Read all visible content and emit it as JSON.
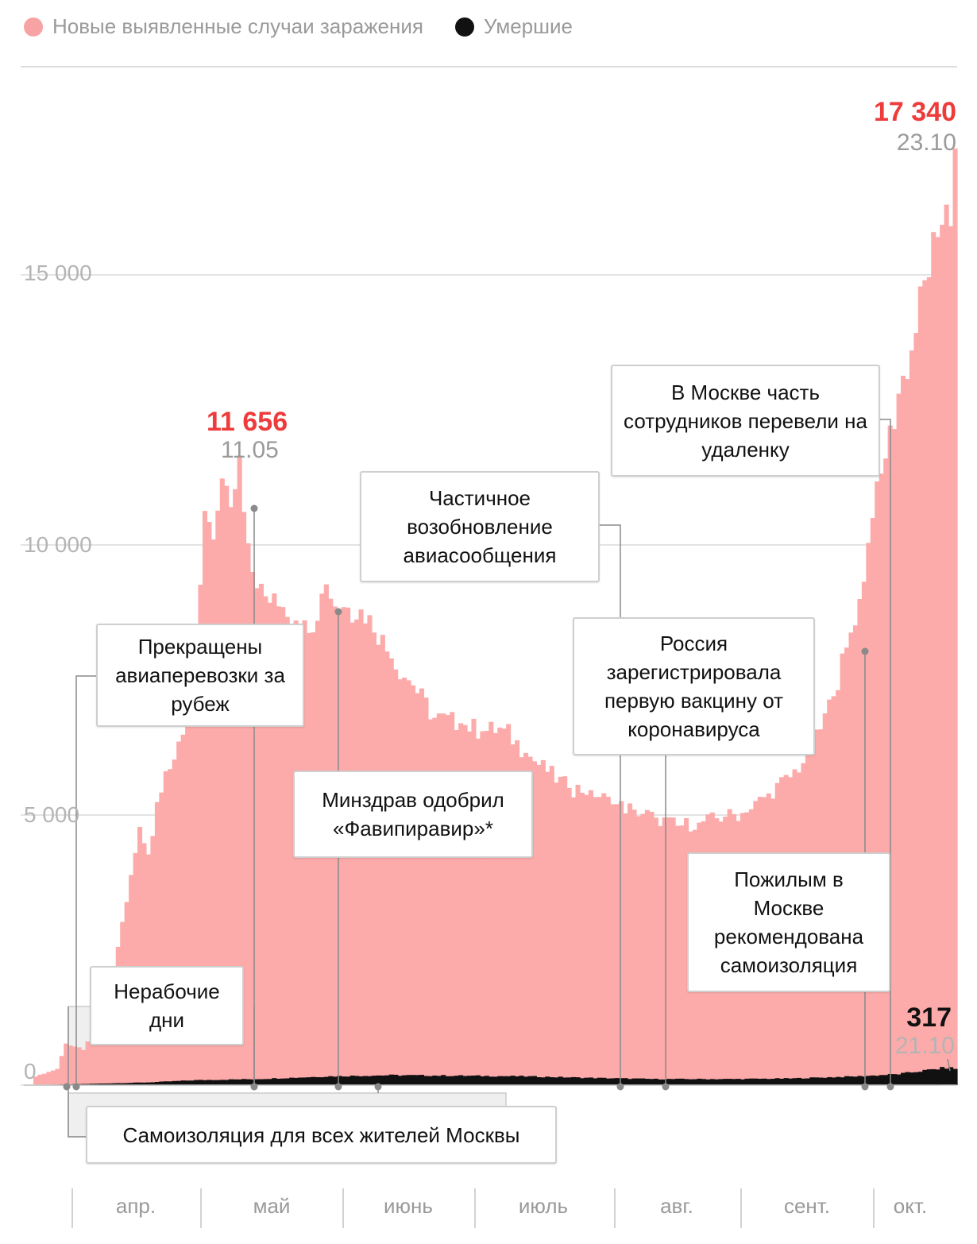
{
  "legend": {
    "cases_label": "Новые выявленные случаи заражения",
    "deaths_label": "Умершие",
    "cases_color": "#f8a3a3",
    "deaths_color": "#111111"
  },
  "peaks": {
    "first_value": "11 656",
    "first_date": "11.05",
    "last_value": "17 340",
    "last_date": "23.10",
    "deaths_value": "317",
    "deaths_date": "21.10"
  },
  "callouts": {
    "flights_stopped": "Прекращены авиаперевозки за рубеж",
    "nonworking_days": "Нерабочие дни",
    "self_isolation_all": "Самоизоляция для всех жителей Москвы",
    "favipiravir": "Минздрав одобрил «Фавипиравир»*",
    "flights_resumed": "Частичное возобновление авиасообщения",
    "vaccine": "Россия зарегистрировала первую вакцину от коронавируса",
    "remote_work": "В Москве часть сотрудников перевели на удаленку",
    "elderly": "Пожилым в Москве рекомендована самоизоляция"
  },
  "chart_data": {
    "type": "bar",
    "xlabel": "",
    "ylabel": "",
    "ylim": [
      0,
      17340
    ],
    "yticks": [
      "0",
      "5 000",
      "10 000",
      "15 000"
    ],
    "ytick_values": [
      0,
      5000,
      10000,
      15000
    ],
    "months": [
      "апр.",
      "май",
      "июнь",
      "июль",
      "авг.",
      "сент.",
      "окт."
    ],
    "x_range": [
      "2020-03-25",
      "2020-10-23"
    ],
    "series": [
      {
        "name": "Новые выявленные случаи заражения",
        "keypoints": [
          [
            "2020-03-25",
            160
          ],
          [
            "2020-03-30",
            300
          ],
          [
            "2020-04-01",
            770
          ],
          [
            "2020-04-05",
            650
          ],
          [
            "2020-04-08",
            1170
          ],
          [
            "2020-04-11",
            1670
          ],
          [
            "2020-04-13",
            2560
          ],
          [
            "2020-04-15",
            3390
          ],
          [
            "2020-04-18",
            4780
          ],
          [
            "2020-04-20",
            4270
          ],
          [
            "2020-04-22",
            5240
          ],
          [
            "2020-04-25",
            5850
          ],
          [
            "2020-04-27",
            6360
          ],
          [
            "2020-04-30",
            7100
          ],
          [
            "2020-05-01",
            7930
          ],
          [
            "2020-05-03",
            10630
          ],
          [
            "2020-05-05",
            10100
          ],
          [
            "2020-05-07",
            11230
          ],
          [
            "2020-05-09",
            10700
          ],
          [
            "2020-05-11",
            11656
          ],
          [
            "2020-05-13",
            10030
          ],
          [
            "2020-05-15",
            9200
          ],
          [
            "2020-05-18",
            8930
          ],
          [
            "2020-05-21",
            8850
          ],
          [
            "2020-05-24",
            8600
          ],
          [
            "2020-05-27",
            8370
          ],
          [
            "2020-05-31",
            9270
          ],
          [
            "2020-06-02",
            8860
          ],
          [
            "2020-06-05",
            8840
          ],
          [
            "2020-06-10",
            8700
          ],
          [
            "2020-06-15",
            7900
          ],
          [
            "2020-06-20",
            7400
          ],
          [
            "2020-06-25",
            6800
          ],
          [
            "2020-07-01",
            6700
          ],
          [
            "2020-07-06",
            6550
          ],
          [
            "2020-07-11",
            6600
          ],
          [
            "2020-07-16",
            6150
          ],
          [
            "2020-07-21",
            5800
          ],
          [
            "2020-07-26",
            5500
          ],
          [
            "2020-07-31",
            5460
          ],
          [
            "2020-08-05",
            5200
          ],
          [
            "2020-08-10",
            5100
          ],
          [
            "2020-08-15",
            4950
          ],
          [
            "2020-08-20",
            4800
          ],
          [
            "2020-08-25",
            4860
          ],
          [
            "2020-08-31",
            4970
          ],
          [
            "2020-09-05",
            5050
          ],
          [
            "2020-09-10",
            5400
          ],
          [
            "2020-09-15",
            5700
          ],
          [
            "2020-09-20",
            6200
          ],
          [
            "2020-09-25",
            7200
          ],
          [
            "2020-09-28",
            8100
          ],
          [
            "2020-10-01",
            9000
          ],
          [
            "2020-10-04",
            10500
          ],
          [
            "2020-10-07",
            11600
          ],
          [
            "2020-10-10",
            12800
          ],
          [
            "2020-10-13",
            13600
          ],
          [
            "2020-10-16",
            14900
          ],
          [
            "2020-10-19",
            15700
          ],
          [
            "2020-10-21",
            16300
          ],
          [
            "2020-10-22",
            15900
          ],
          [
            "2020-10-23",
            17340
          ]
        ]
      },
      {
        "name": "Умершие",
        "keypoints": [
          [
            "2020-03-25",
            0
          ],
          [
            "2020-04-10",
            30
          ],
          [
            "2020-04-20",
            50
          ],
          [
            "2020-05-01",
            90
          ],
          [
            "2020-05-15",
            110
          ],
          [
            "2020-06-01",
            160
          ],
          [
            "2020-06-15",
            180
          ],
          [
            "2020-07-01",
            170
          ],
          [
            "2020-07-15",
            160
          ],
          [
            "2020-08-01",
            130
          ],
          [
            "2020-08-15",
            110
          ],
          [
            "2020-09-01",
            110
          ],
          [
            "2020-09-15",
            120
          ],
          [
            "2020-10-01",
            160
          ],
          [
            "2020-10-10",
            200
          ],
          [
            "2020-10-21",
            317
          ],
          [
            "2020-10-23",
            300
          ]
        ]
      }
    ]
  }
}
